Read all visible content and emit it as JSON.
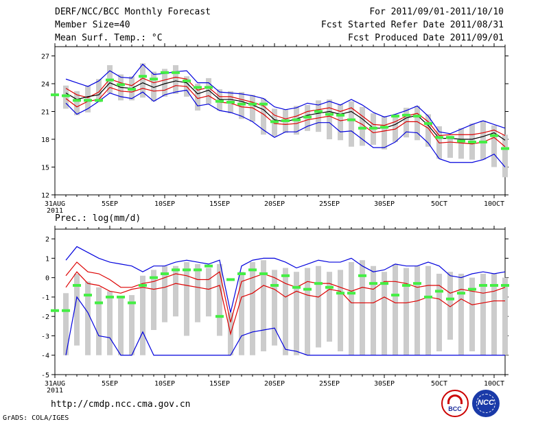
{
  "header": {
    "title": "DERF/NCC/BCC Monthly Forecast",
    "member_size": "Member Size=40",
    "variable": "Mean Surf. Temp.: °C",
    "period": "For 2011/09/01-2011/10/10",
    "start_refer": "Fcst Started Refer Date 2011/08/31",
    "produced": "Fcst Produced Date 2011/09/01"
  },
  "footer": {
    "url": "http://cmdp.ncc.cma.gov.cn",
    "grads": "GrADS: COLA/IGES",
    "logo_bcc": "BCC",
    "logo_ncc": "NCC"
  },
  "colors": {
    "blue": "#0000dd",
    "red": "#dd0000",
    "black": "#000000",
    "green": "#44ee44",
    "box": "#cccccc"
  },
  "chart_data": [
    {
      "type": "box-ensemble",
      "title": "Mean Surf. Temp.: °C",
      "ylim": [
        12,
        28
      ],
      "yticks": [
        12,
        15,
        18,
        21,
        24,
        27
      ],
      "xlim": [
        0,
        41
      ],
      "xtick_days": [
        0,
        5,
        10,
        15,
        20,
        25,
        30,
        35,
        40
      ],
      "xtick_labels": [
        "31AUG",
        "5SEP",
        "10SEP",
        "15SEP",
        "20SEP",
        "25SEP",
        "30SEP",
        "5OCT",
        "10OCT"
      ],
      "year_label": "2011",
      "series": [
        {
          "name": "max",
          "values": [
            24.5,
            24.5,
            24.1,
            23.7,
            24.3,
            25.4,
            24.7,
            24.6,
            26.1,
            25.0,
            25.1,
            25.3,
            25.4,
            24.1,
            24.1,
            23.1,
            23.0,
            22.9,
            22.7,
            22.4,
            21.5,
            21.2,
            21.4,
            21.9,
            21.7,
            22.1,
            21.7,
            22.3,
            21.7,
            20.9,
            20.4,
            20.7,
            21.1,
            21.6,
            20.5,
            18.8,
            18.6,
            19.1,
            19.6,
            20.0,
            19.6,
            19.2
          ]
        },
        {
          "name": "upper",
          "values": [
            23.5,
            23.5,
            22.8,
            22.5,
            23.1,
            24.5,
            24.1,
            23.8,
            24.6,
            24.1,
            24.4,
            24.7,
            24.5,
            23.3,
            23.6,
            22.6,
            22.6,
            22.3,
            22.0,
            21.6,
            20.6,
            20.2,
            20.5,
            21.0,
            21.2,
            21.4,
            21.0,
            21.4,
            20.5,
            19.6,
            19.5,
            19.9,
            20.5,
            20.8,
            19.9,
            18.4,
            18.5,
            18.5,
            18.5,
            18.7,
            19.0,
            18.4
          ]
        },
        {
          "name": "mean",
          "values": [
            23.0,
            23.0,
            22.3,
            22.6,
            22.8,
            24.1,
            23.6,
            23.5,
            24.1,
            23.6,
            24.0,
            24.3,
            24.1,
            22.9,
            23.3,
            22.3,
            22.3,
            22.1,
            21.7,
            21.2,
            20.1,
            19.9,
            20.2,
            20.6,
            20.8,
            21.0,
            20.7,
            21.0,
            20.2,
            19.2,
            19.2,
            19.6,
            20.3,
            20.6,
            19.5,
            18.1,
            18.1,
            18.0,
            18.0,
            18.3,
            18.7,
            17.9
          ]
        },
        {
          "name": "lower",
          "values": [
            22.4,
            22.4,
            21.5,
            22.1,
            22.3,
            23.6,
            23.2,
            23.1,
            23.5,
            23.2,
            23.3,
            23.8,
            23.7,
            22.4,
            22.7,
            22.0,
            21.9,
            21.5,
            21.4,
            20.7,
            19.7,
            19.6,
            19.7,
            20.1,
            20.3,
            20.5,
            20.0,
            20.2,
            19.6,
            18.7,
            18.9,
            19.1,
            19.9,
            19.9,
            19.2,
            17.6,
            17.7,
            17.6,
            17.5,
            17.7,
            18.2,
            17.2
          ]
        },
        {
          "name": "min",
          "values": [
            21.9,
            21.9,
            20.7,
            21.3,
            22.1,
            23.0,
            22.6,
            22.4,
            23.1,
            22.1,
            22.8,
            23.1,
            23.3,
            21.6,
            21.8,
            21.1,
            20.9,
            20.5,
            19.9,
            19.0,
            18.2,
            18.8,
            18.8,
            19.4,
            19.8,
            19.8,
            18.8,
            18.9,
            18.0,
            17.1,
            17.1,
            17.7,
            18.8,
            18.7,
            17.6,
            15.9,
            15.5,
            15.5,
            15.5,
            15.8,
            16.4,
            15.0
          ]
        },
        {
          "name": "observed",
          "values": [
            22.8,
            22.7,
            22.2,
            22.2,
            22.2,
            24.4,
            23.9,
            23.4,
            24.8,
            24.5,
            25.2,
            25.2,
            24.3,
            23.6,
            23.6,
            22.1,
            22.0,
            21.8,
            21.8,
            21.8,
            19.9,
            20.0,
            20.1,
            20.4,
            21.0,
            20.7,
            20.6,
            20.1,
            19.2,
            19.2,
            19.3,
            20.5,
            20.6,
            20.5,
            19.7,
            18.2,
            18.2,
            17.8,
            17.7,
            17.7,
            18.4,
            17.0
          ]
        }
      ],
      "boxes": [
        [
          21.5,
          23.6
        ],
        [
          21.3,
          23.8
        ],
        [
          20.6,
          23.2
        ],
        [
          20.9,
          23.8
        ],
        [
          22.0,
          24.5
        ],
        [
          23.0,
          26.0
        ],
        [
          22.2,
          25.0
        ],
        [
          22.2,
          24.8
        ],
        [
          22.5,
          26.2
        ],
        [
          22.1,
          25.3
        ],
        [
          22.6,
          25.6
        ],
        [
          22.9,
          26.0
        ],
        [
          22.6,
          24.8
        ],
        [
          21.1,
          24.0
        ],
        [
          21.8,
          24.6
        ],
        [
          21.1,
          23.4
        ],
        [
          20.8,
          23.2
        ],
        [
          20.2,
          23.1
        ],
        [
          19.9,
          22.8
        ],
        [
          18.5,
          22.4
        ],
        [
          18.3,
          21.3
        ],
        [
          18.7,
          21.2
        ],
        [
          18.5,
          21.6
        ],
        [
          18.9,
          21.7
        ],
        [
          18.8,
          22.2
        ],
        [
          18.0,
          22.3
        ],
        [
          17.9,
          21.8
        ],
        [
          17.2,
          22.1
        ],
        [
          17.3,
          21.5
        ],
        [
          17.4,
          20.8
        ],
        [
          16.9,
          20.5
        ],
        [
          17.7,
          20.7
        ],
        [
          18.2,
          21.4
        ],
        [
          17.9,
          21.6
        ],
        [
          17.2,
          20.7
        ],
        [
          15.9,
          19.4
        ],
        [
          16.0,
          18.4
        ],
        [
          15.9,
          19.2
        ],
        [
          15.8,
          19.7
        ],
        [
          15.8,
          20.0
        ],
        [
          15.0,
          19.5
        ],
        [
          13.9,
          18.5
        ]
      ]
    },
    {
      "type": "box-ensemble",
      "title": "Prec.: log(mm/d)",
      "ylim": [
        -5,
        2.5
      ],
      "yticks": [
        -5,
        -4,
        -3,
        -2,
        -1,
        0,
        1,
        2
      ],
      "xlim": [
        0,
        41
      ],
      "xtick_days": [
        0,
        5,
        10,
        15,
        20,
        25,
        30,
        35,
        40
      ],
      "xtick_labels": [
        "31AUG",
        "5SEP",
        "10SEP",
        "15SEP",
        "20SEP",
        "25SEP",
        "30SEP",
        "5OCT",
        "10OCT"
      ],
      "year_label": "2011",
      "series": [
        {
          "name": "max",
          "values": [
            0.9,
            0.9,
            1.6,
            1.3,
            1.0,
            0.8,
            0.7,
            0.6,
            0.3,
            0.6,
            0.6,
            0.8,
            0.9,
            0.8,
            0.7,
            0.9,
            -1.8,
            0.6,
            0.9,
            1.0,
            1.0,
            0.8,
            0.5,
            0.7,
            0.9,
            0.8,
            0.8,
            1.0,
            0.6,
            0.3,
            0.4,
            0.7,
            0.6,
            0.6,
            0.8,
            0.6,
            0.1,
            0.0,
            0.2,
            0.3,
            0.2,
            0.3
          ]
        },
        {
          "name": "upper",
          "values": [
            0.1,
            0.1,
            0.8,
            0.3,
            0.2,
            -0.1,
            -0.5,
            -0.5,
            -0.3,
            -0.2,
            0.0,
            0.2,
            0.1,
            -0.1,
            -0.1,
            0.3,
            -2.3,
            -0.2,
            0.0,
            0.2,
            0.0,
            -0.3,
            -0.5,
            -0.2,
            -0.3,
            -0.3,
            -0.5,
            -0.7,
            -0.5,
            -0.6,
            -0.2,
            -0.2,
            -0.3,
            -0.5,
            -0.4,
            -0.4,
            -0.8,
            -0.6,
            -0.7,
            -0.8,
            -0.7,
            -0.5
          ]
        },
        {
          "name": "lower",
          "values": [
            -0.5,
            -0.5,
            0.3,
            -0.3,
            -0.4,
            -0.7,
            -0.8,
            -0.6,
            -0.5,
            -0.6,
            -0.5,
            -0.3,
            -0.4,
            -0.5,
            -0.6,
            -0.4,
            -2.9,
            -1.0,
            -0.8,
            -0.4,
            -0.6,
            -1.0,
            -0.7,
            -0.9,
            -1.0,
            -0.6,
            -0.7,
            -1.3,
            -1.3,
            -1.3,
            -1.0,
            -1.3,
            -1.3,
            -1.2,
            -1.0,
            -1.1,
            -1.5,
            -1.1,
            -1.4,
            -1.3,
            -1.2,
            -1.2
          ]
        },
        {
          "name": "min",
          "values": [
            -4,
            -4,
            -1.0,
            -1.8,
            -3.0,
            -3.1,
            -4,
            -4,
            -2.8,
            -4,
            -4,
            -4,
            -4,
            -4,
            -4,
            -4,
            -4,
            -3.0,
            -2.8,
            -2.7,
            -2.6,
            -3.7,
            -3.8,
            -4,
            -4,
            -4,
            -4,
            -4,
            -4,
            -4,
            -4,
            -4,
            -4,
            -4,
            -4,
            -4,
            -4,
            -4,
            -4,
            -4,
            -4,
            -4
          ]
        },
        {
          "name": "observed",
          "values": [
            -1.7,
            -1.7,
            -0.4,
            -0.9,
            -1.3,
            -1.0,
            -1.0,
            -1.3,
            -0.4,
            0.0,
            0.2,
            0.4,
            0.4,
            0.4,
            0.6,
            -2.0,
            -0.1,
            0.2,
            0.4,
            0.2,
            -0.4,
            0.1,
            -0.5,
            -0.6,
            -0.3,
            -0.5,
            -0.8,
            -0.8,
            0.1,
            -0.3,
            -0.3,
            -0.9,
            -0.4,
            -0.3,
            -1.0,
            -0.7,
            -1.1,
            -0.8,
            -0.6,
            -0.4,
            -0.4,
            -0.4
          ]
        }
      ],
      "boxes": [
        [
          -4.0,
          -0.8
        ],
        [
          -4.0,
          -0.8
        ],
        [
          -3.5,
          0.2
        ],
        [
          -4.0,
          -0.2
        ],
        [
          -4.0,
          -0.5
        ],
        [
          -4.0,
          -0.7
        ],
        [
          -4.0,
          -1.0
        ],
        [
          -4.0,
          -0.9
        ],
        [
          -4.0,
          0.1
        ],
        [
          -2.7,
          0.4
        ],
        [
          -2.3,
          0.6
        ],
        [
          -2.0,
          0.6
        ],
        [
          -3.0,
          0.8
        ],
        [
          -2.3,
          0.7
        ],
        [
          -2.0,
          0.5
        ],
        [
          -3.0,
          0.7
        ],
        [
          -4.0,
          -1.8
        ],
        [
          -4.0,
          0.3
        ],
        [
          -4.0,
          0.8
        ],
        [
          -3.8,
          0.9
        ],
        [
          -3.5,
          0.4
        ],
        [
          -4.0,
          0.5
        ],
        [
          -4.0,
          0.3
        ],
        [
          -4.0,
          0.5
        ],
        [
          -3.6,
          0.6
        ],
        [
          -3.3,
          0.3
        ],
        [
          -3.8,
          0.4
        ],
        [
          -4.0,
          0.8
        ],
        [
          -4.0,
          0.9
        ],
        [
          -4.0,
          0.6
        ],
        [
          -4.0,
          0.3
        ],
        [
          -4.0,
          0.7
        ],
        [
          -4.0,
          0.5
        ],
        [
          -4.0,
          0.6
        ],
        [
          -4.0,
          0.6
        ],
        [
          -3.8,
          0.2
        ],
        [
          -3.2,
          0.3
        ],
        [
          -4.0,
          0.2
        ],
        [
          -3.8,
          0.0
        ],
        [
          -4.0,
          0.2
        ],
        [
          -4.0,
          0.2
        ],
        [
          -4.0,
          0.0
        ]
      ]
    }
  ]
}
